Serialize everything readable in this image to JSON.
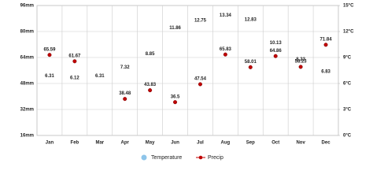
{
  "chart_data": {
    "type": "climate",
    "categories": [
      "Jan",
      "Feb",
      "Mar",
      "Apr",
      "May",
      "Jun",
      "Jul",
      "Aug",
      "Sep",
      "Oct",
      "Nov",
      "Dec"
    ],
    "series": [
      {
        "name": "Temperature",
        "color": "#8ec5ea",
        "axis": "y2",
        "values": [
          6.31,
          6.12,
          6.31,
          7.32,
          8.85,
          11.86,
          12.75,
          13.34,
          12.83,
          10.13,
          8.23,
          6.83
        ]
      },
      {
        "name": "Precip",
        "color": "#c00000",
        "values": [
          65.59,
          61.67,
          null,
          38.48,
          43.83,
          36.5,
          47.54,
          65.83,
          58.01,
          64.86,
          58.23,
          71.84
        ]
      }
    ],
    "ylim": [
      16,
      96
    ],
    "yticks": [
      {
        "value": 16,
        "label": "16mm"
      },
      {
        "value": 32,
        "label": "32mm"
      },
      {
        "value": 48,
        "label": "48mm"
      },
      {
        "value": 64,
        "label": "64mm"
      },
      {
        "value": 80,
        "label": "80mm"
      },
      {
        "value": 96,
        "label": "96mm"
      }
    ],
    "y2lim": [
      0,
      15
    ],
    "y2ticks": [
      {
        "value": 0,
        "label": "0°C"
      },
      {
        "value": 3,
        "label": "3°C"
      },
      {
        "value": 6,
        "label": "6°C"
      },
      {
        "value": 9,
        "label": "9°C"
      },
      {
        "value": 12,
        "label": "12°C"
      },
      {
        "value": 15,
        "label": "15°C"
      }
    ],
    "grid": true
  }
}
